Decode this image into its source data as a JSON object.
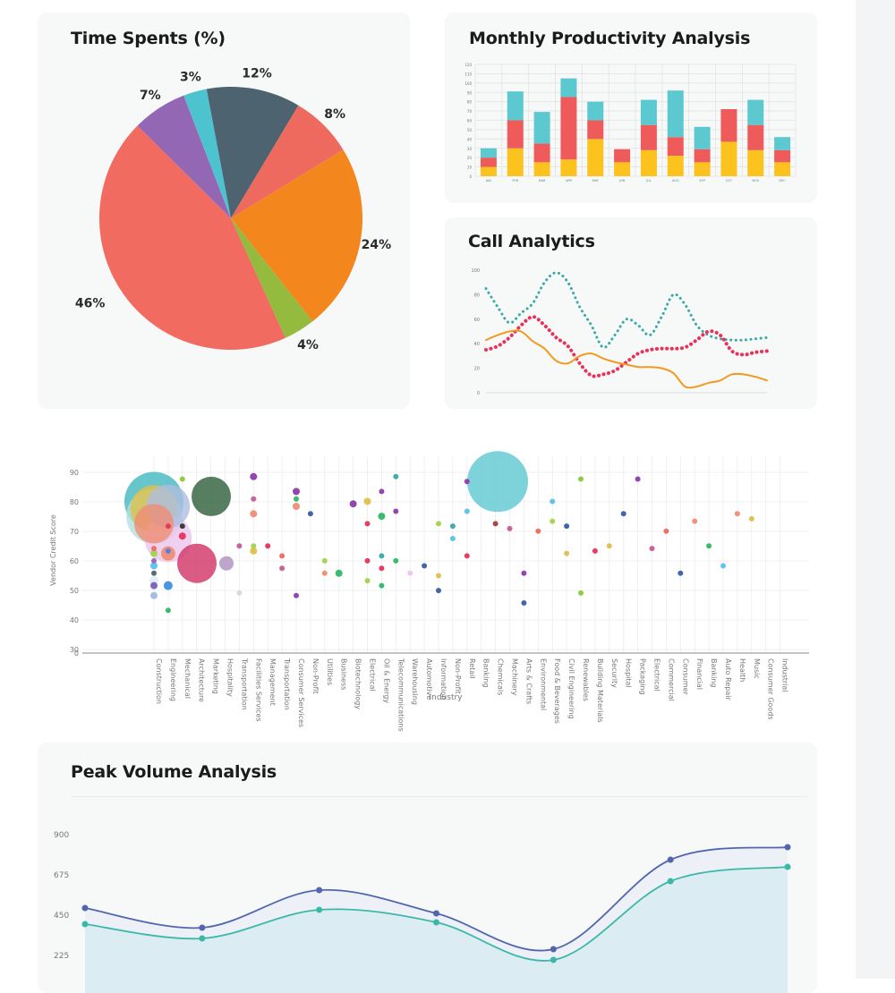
{
  "pie_card": {
    "title": "Time Spents (%)"
  },
  "bar_card": {
    "title": "Monthly Productivity Analysis"
  },
  "line_card": {
    "title": "Call Analytics"
  },
  "area_card": {
    "title": "Peak Volume Analysis"
  },
  "colors": {
    "card_bg": "#f7f8f8",
    "pie": [
      "#f26b61",
      "#9467b5",
      "#4cc3cf",
      "#4e6370",
      "#ee6a5f",
      "#f4861e",
      "#94ba3e"
    ],
    "bar": [
      "#fcc21e",
      "#ef5b5b",
      "#5cc8cf"
    ],
    "line": [
      "#3aa9a4",
      "#e8325a",
      "#f29a1f"
    ],
    "area": [
      "#5166ad",
      "#3bb8a8"
    ]
  },
  "chart_data": [
    {
      "type": "pie",
      "title": "Time Spents (%)",
      "slices": [
        {
          "label": "46%",
          "value": 46
        },
        {
          "label": "7%",
          "value": 7
        },
        {
          "label": "3%",
          "value": 3
        },
        {
          "label": "12%",
          "value": 12
        },
        {
          "label": "8%",
          "value": 8
        },
        {
          "label": "24%",
          "value": 24
        },
        {
          "label": "4%",
          "value": 4
        }
      ]
    },
    {
      "type": "bar",
      "stacked": true,
      "title": "Monthly Productivity Analysis",
      "categories": [
        "JAN",
        "FEB",
        "MAR",
        "APR",
        "MAY",
        "JUN",
        "JUL",
        "AUG",
        "SEP",
        "OCT",
        "NOV",
        "DEC"
      ],
      "ylim": [
        0,
        120
      ],
      "yticks": [
        "120",
        "110",
        "100",
        "90",
        "80",
        "70",
        "60",
        "50",
        "40",
        "30",
        "20",
        "10",
        "0"
      ],
      "series": [
        {
          "values": [
            10,
            30,
            15,
            18,
            40,
            15,
            28,
            22,
            15,
            37,
            28,
            15
          ]
        },
        {
          "values": [
            10,
            30,
            20,
            67,
            20,
            14,
            27,
            20,
            14,
            35,
            27,
            13
          ]
        },
        {
          "values": [
            10,
            31,
            34,
            20,
            20,
            0,
            27,
            50,
            24,
            0,
            27,
            14
          ]
        }
      ],
      "grid": true
    },
    {
      "type": "line",
      "title": "Call Analytics",
      "x": [
        0,
        1,
        2,
        3,
        4,
        5,
        6,
        7,
        8,
        9,
        10,
        11,
        12,
        13,
        14,
        15,
        16,
        17,
        18,
        19,
        20,
        21,
        22,
        23,
        24
      ],
      "ylim": [
        0,
        100
      ],
      "yticks": [
        "100",
        "80",
        "60",
        "40",
        "20",
        "0"
      ],
      "series": [
        {
          "style": "dotted",
          "values": [
            85,
            70,
            57,
            65,
            73,
            90,
            98,
            90,
            70,
            55,
            37,
            47,
            60,
            55,
            47,
            62,
            80,
            72,
            55,
            47,
            44,
            43,
            43,
            44,
            45
          ]
        },
        {
          "style": "dotted",
          "values": [
            35,
            38,
            45,
            55,
            62,
            55,
            45,
            38,
            24,
            14,
            15,
            18,
            25,
            32,
            35,
            36,
            36,
            37,
            43,
            50,
            47,
            34,
            31,
            33,
            34
          ]
        },
        {
          "style": "solid",
          "values": [
            43,
            47,
            50,
            50,
            42,
            36,
            26,
            24,
            30,
            32,
            28,
            25,
            23,
            21,
            21,
            20,
            16,
            5,
            5,
            8,
            10,
            15,
            15,
            13,
            10
          ]
        }
      ]
    },
    {
      "type": "scatter",
      "bubble": true,
      "xlabel": "Industry",
      "ylabel": "Vendor Credit Score",
      "yticks": [
        "90",
        "80",
        "70",
        "60",
        "50",
        "40",
        "30",
        "0"
      ],
      "categories": [
        "Construction",
        "Engineering",
        "Mechanical",
        "Architecture",
        "Marketing",
        "Hospitality",
        "Transportation",
        "Facilities Services",
        "Management",
        "Transportation",
        "Consumer Services",
        "Non-Profit",
        "Utilities",
        "Business",
        "Biotechnology",
        "Electrical",
        "Oil & Energy",
        "Telecommunications",
        "Warehousing",
        "Automotive",
        "Information",
        "Non-Profit",
        "Retail",
        "Banking",
        "Chemicals",
        "Machinery",
        "Arts & Crafts",
        "Environmental",
        "Food & Beverages",
        "Civil Engineering",
        "Renewables",
        "Building Materials",
        "Security",
        "Hospital",
        "Packaging",
        "Electrical",
        "Commercial",
        "Consumer",
        "Financial",
        "Banking",
        "Auto Repair",
        "Health",
        "Music",
        "Consumer Goods",
        "Industrial"
      ],
      "points": [
        {
          "c": 0,
          "y": 84,
          "r": 15,
          "color": "#41b6bf"
        },
        {
          "c": 0,
          "y": 81,
          "r": 12,
          "color": "#ddc04b"
        },
        {
          "c": 0,
          "y": 75,
          "r": 10,
          "color": "#ef8d73"
        },
        {
          "c": 1,
          "y": 63,
          "r": 8,
          "color": "#ef8d73"
        },
        {
          "c": 0,
          "y": 78,
          "r": 14,
          "color": "#b5e0dd"
        },
        {
          "c": 1,
          "y": 69,
          "r": 12,
          "color": "#ecc4ec"
        },
        {
          "c": 0,
          "y": 65,
          "r": 3,
          "color": "#ee6a5f"
        },
        {
          "c": 0,
          "y": 63,
          "r": 4,
          "color": "#a1d24f"
        },
        {
          "c": 0,
          "y": 60,
          "r": 3,
          "color": "#9467b5"
        },
        {
          "c": 0,
          "y": 58,
          "r": 4,
          "color": "#5bc0eb"
        },
        {
          "c": 0,
          "y": 55,
          "r": 3,
          "color": "#4e6370"
        },
        {
          "c": 0,
          "y": 52,
          "r": 5,
          "color": "#dfeef8"
        },
        {
          "c": 0,
          "y": 50,
          "r": 4,
          "color": "#7b5ebd"
        },
        {
          "c": 0,
          "y": 46,
          "r": 4,
          "color": "#a3b9e0"
        },
        {
          "c": 1,
          "y": 74,
          "r": 3,
          "color": "#e8325a"
        },
        {
          "c": 1,
          "y": 82,
          "r": 11,
          "color": "#aebde0"
        },
        {
          "c": 1,
          "y": 64,
          "r": 3,
          "color": "#4f7fe8"
        },
        {
          "c": 1,
          "y": 50,
          "r": 5,
          "color": "#3d8fe6"
        },
        {
          "c": 1,
          "y": 40,
          "r": 3,
          "color": "#2fb866"
        },
        {
          "c": 2,
          "y": 70,
          "r": 4,
          "color": "#e8325a"
        },
        {
          "c": 2,
          "y": 74,
          "r": 3,
          "color": "#333333"
        },
        {
          "c": 2,
          "y": 93,
          "r": 3,
          "color": "#8dc63f"
        },
        {
          "c": 3,
          "y": 59,
          "r": 10,
          "color": "#d13367"
        },
        {
          "c": 4,
          "y": 86,
          "r": 10,
          "color": "#2d5e3a"
        },
        {
          "c": 5,
          "y": 59,
          "r": 8,
          "color": "#b9a0c8"
        },
        {
          "c": 6,
          "y": 66,
          "r": 3,
          "color": "#c55b99"
        },
        {
          "c": 6,
          "y": 47,
          "r": 3,
          "color": "#d8d8d8"
        },
        {
          "c": 7,
          "y": 94,
          "r": 4,
          "color": "#8e3cab"
        },
        {
          "c": 7,
          "y": 85,
          "r": 3,
          "color": "#c55b99"
        },
        {
          "c": 7,
          "y": 79,
          "r": 4,
          "color": "#ef8d73"
        },
        {
          "c": 7,
          "y": 64,
          "r": 4,
          "color": "#ddc04b"
        },
        {
          "c": 7,
          "y": 66,
          "r": 3,
          "color": "#a1d24f"
        },
        {
          "c": 8,
          "y": 66,
          "r": 3,
          "color": "#e8325a"
        },
        {
          "c": 9,
          "y": 62,
          "r": 3,
          "color": "#ee6a5f"
        },
        {
          "c": 9,
          "y": 57,
          "r": 3,
          "color": "#c55b99"
        },
        {
          "c": 10,
          "y": 88,
          "r": 4,
          "color": "#8e3cab"
        },
        {
          "c": 10,
          "y": 85,
          "r": 3,
          "color": "#2fb866"
        },
        {
          "c": 10,
          "y": 82,
          "r": 4,
          "color": "#ef8d73"
        },
        {
          "c": 10,
          "y": 46,
          "r": 3,
          "color": "#8e3cab"
        },
        {
          "c": 11,
          "y": 79,
          "r": 3,
          "color": "#3b5ca8"
        },
        {
          "c": 12,
          "y": 60,
          "r": 3,
          "color": "#a1d24f"
        },
        {
          "c": 12,
          "y": 55,
          "r": 3,
          "color": "#ef8d73"
        },
        {
          "c": 13,
          "y": 55,
          "r": 4,
          "color": "#2fb866"
        },
        {
          "c": 14,
          "y": 83,
          "r": 4,
          "color": "#8e3cab"
        },
        {
          "c": 15,
          "y": 84,
          "r": 4,
          "color": "#ddc04b"
        },
        {
          "c": 15,
          "y": 75,
          "r": 3,
          "color": "#e8325a"
        },
        {
          "c": 15,
          "y": 60,
          "r": 3,
          "color": "#e8325a"
        },
        {
          "c": 15,
          "y": 52,
          "r": 3,
          "color": "#a1d24f"
        },
        {
          "c": 16,
          "y": 88,
          "r": 3,
          "color": "#8e3cab"
        },
        {
          "c": 16,
          "y": 78,
          "r": 4,
          "color": "#2fb866"
        },
        {
          "c": 16,
          "y": 62,
          "r": 3,
          "color": "#3aa9a4"
        },
        {
          "c": 16,
          "y": 57,
          "r": 3,
          "color": "#e8325a"
        },
        {
          "c": 16,
          "y": 50,
          "r": 3,
          "color": "#2fb866"
        },
        {
          "c": 17,
          "y": 94,
          "r": 3,
          "color": "#3aa9a4"
        },
        {
          "c": 17,
          "y": 80,
          "r": 3,
          "color": "#8e3cab"
        },
        {
          "c": 17,
          "y": 60,
          "r": 3,
          "color": "#2fb866"
        },
        {
          "c": 18,
          "y": 55,
          "r": 3,
          "color": "#ecc4ec"
        },
        {
          "c": 19,
          "y": 58,
          "r": 3,
          "color": "#3b5ca8"
        },
        {
          "c": 20,
          "y": 75,
          "r": 3,
          "color": "#a1d24f"
        },
        {
          "c": 20,
          "y": 54,
          "r": 3,
          "color": "#ddc04b"
        },
        {
          "c": 20,
          "y": 48,
          "r": 3,
          "color": "#3b5ca8"
        },
        {
          "c": 21,
          "y": 74,
          "r": 3,
          "color": "#3aa9a4"
        },
        {
          "c": 21,
          "y": 69,
          "r": 3,
          "color": "#5bc0eb"
        },
        {
          "c": 22,
          "y": 92,
          "r": 3,
          "color": "#8e3cab"
        },
        {
          "c": 22,
          "y": 80,
          "r": 3,
          "color": "#5bc0eb"
        },
        {
          "c": 22,
          "y": 62,
          "r": 3,
          "color": "#e8325a"
        },
        {
          "c": 23,
          "y": 92,
          "r": 19,
          "color": "#5cc8cf"
        },
        {
          "c": 24,
          "y": 75,
          "r": 3,
          "color": "#a63a3a"
        },
        {
          "c": 25,
          "y": 73,
          "r": 3,
          "color": "#c55b99"
        },
        {
          "c": 26,
          "y": 55,
          "r": 3,
          "color": "#8e3cab"
        },
        {
          "c": 26,
          "y": 43,
          "r": 3,
          "color": "#3b5ca8"
        },
        {
          "c": 27,
          "y": 72,
          "r": 3,
          "color": "#ee6a5f"
        },
        {
          "c": 28,
          "y": 84,
          "r": 3,
          "color": "#5bc0eb"
        },
        {
          "c": 28,
          "y": 76,
          "r": 3,
          "color": "#a1d24f"
        },
        {
          "c": 29,
          "y": 74,
          "r": 3,
          "color": "#2f5fa8"
        },
        {
          "c": 29,
          "y": 63,
          "r": 3,
          "color": "#ddc04b"
        },
        {
          "c": 30,
          "y": 93,
          "r": 3,
          "color": "#8dc63f"
        },
        {
          "c": 30,
          "y": 47,
          "r": 3,
          "color": "#8dc63f"
        },
        {
          "c": 31,
          "y": 64,
          "r": 3,
          "color": "#e8325a"
        },
        {
          "c": 32,
          "y": 66,
          "r": 3,
          "color": "#ddc04b"
        },
        {
          "c": 33,
          "y": 79,
          "r": 3,
          "color": "#3b5ca8"
        },
        {
          "c": 34,
          "y": 93,
          "r": 3,
          "color": "#8e3cab"
        },
        {
          "c": 35,
          "y": 65,
          "r": 3,
          "color": "#c55b99"
        },
        {
          "c": 36,
          "y": 72,
          "r": 3,
          "color": "#ee6a5f"
        },
        {
          "c": 37,
          "y": 55,
          "r": 3,
          "color": "#3b5ca8"
        },
        {
          "c": 38,
          "y": 76,
          "r": 3,
          "color": "#ef8d73"
        },
        {
          "c": 39,
          "y": 66,
          "r": 3,
          "color": "#2fb866"
        },
        {
          "c": 40,
          "y": 58,
          "r": 3,
          "color": "#5bc0eb"
        },
        {
          "c": 41,
          "y": 79,
          "r": 3,
          "color": "#ef8d73"
        },
        {
          "c": 42,
          "y": 77,
          "r": 3,
          "color": "#ddc04b"
        }
      ]
    },
    {
      "type": "area",
      "title": "Peak Volume Analysis",
      "yticks": [
        "900",
        "675",
        "450",
        "225"
      ],
      "ylim": [
        0,
        900
      ],
      "series": [
        {
          "values": [
            490,
            380,
            590,
            460,
            260,
            760,
            830
          ]
        },
        {
          "values": [
            400,
            320,
            480,
            410,
            200,
            640,
            720
          ]
        }
      ]
    }
  ]
}
